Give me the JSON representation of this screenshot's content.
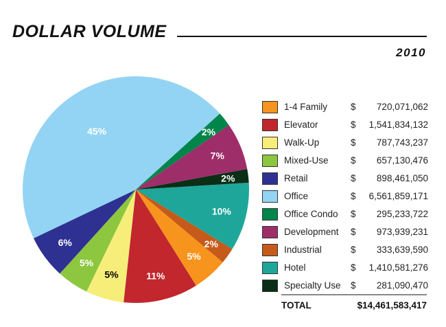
{
  "chart_data": {
    "type": "pie",
    "title": "DOLLAR VOLUME",
    "subtitle": "2010",
    "slices": [
      {
        "name": "Hotel",
        "value": 1410581276,
        "label": "10%",
        "color": "#1fa69a",
        "label_color": "#ffffff"
      },
      {
        "name": "Industrial",
        "value": 333639590,
        "label": "2%",
        "color": "#c55a1b",
        "label_color": "#ffffff"
      },
      {
        "name": "1-4 Family",
        "value": 720071062,
        "label": "5%",
        "color": "#f7941d",
        "label_color": "#ffffff"
      },
      {
        "name": "Elevator",
        "value": 1541834132,
        "label": "11%",
        "color": "#c1272d",
        "label_color": "#ffffff"
      },
      {
        "name": "Walk-Up",
        "value": 787743237,
        "label": "5%",
        "color": "#f7ee7a",
        "label_color": "#000000"
      },
      {
        "name": "Mixed-Use",
        "value": 657130476,
        "label": "5%",
        "color": "#8dc63f",
        "label_color": "#ffffff"
      },
      {
        "name": "Retail",
        "value": 898461050,
        "label": "6%",
        "color": "#2e3192",
        "label_color": "#ffffff"
      },
      {
        "name": "Office",
        "value": 6561859171,
        "label": "45%",
        "color": "#93d4f4",
        "label_color": "#ffffff"
      },
      {
        "name": "Office Condo",
        "value": 295233722,
        "label": "2%",
        "color": "#00854a",
        "label_color": "#ffffff"
      },
      {
        "name": "Development",
        "value": 973939231,
        "label": "7%",
        "color": "#9e2e6a",
        "label_color": "#ffffff"
      },
      {
        "name": "Specialty Use",
        "value": 281090470,
        "label": "2%",
        "color": "#0b2e17",
        "label_color": "#ffffff"
      }
    ]
  },
  "legend": {
    "currency": "$",
    "items": [
      {
        "name": "1-4 Family",
        "amount": "720,071,062",
        "color": "#f7941d"
      },
      {
        "name": "Elevator",
        "amount": "1,541,834,132",
        "color": "#c1272d"
      },
      {
        "name": "Walk-Up",
        "amount": "787,743,237",
        "color": "#f7ee7a"
      },
      {
        "name": "Mixed-Use",
        "amount": "657,130,476",
        "color": "#8dc63f"
      },
      {
        "name": "Retail",
        "amount": "898,461,050",
        "color": "#2e3192"
      },
      {
        "name": "Office",
        "amount": "6,561,859,171",
        "color": "#93d4f4"
      },
      {
        "name": "Office Condo",
        "amount": "295,233,722",
        "color": "#00854a"
      },
      {
        "name": "Development",
        "amount": "973,939,231",
        "color": "#9e2e6a"
      },
      {
        "name": "Industrial",
        "amount": "333,639,590",
        "color": "#c55a1b"
      },
      {
        "name": "Hotel",
        "amount": "1,410,581,276",
        "color": "#1fa69a"
      },
      {
        "name": "Specialty Use",
        "amount": "281,090,470",
        "color": "#0b2e17"
      }
    ],
    "total_label": "TOTAL",
    "total_amount": "$14,461,583,417"
  }
}
